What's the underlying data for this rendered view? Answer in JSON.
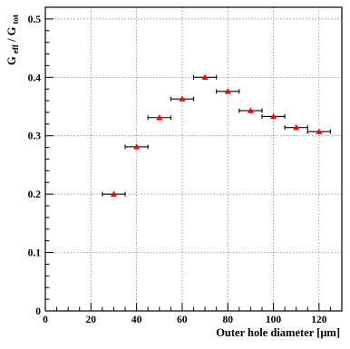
{
  "chart_data": {
    "type": "scatter",
    "title": "",
    "xlabel": "Outer hole diameter [μm]",
    "ylabel": {
      "prefix_main": "G",
      "prefix_sub": "eff",
      "slash": "/",
      "suffix_main": "G",
      "suffix_sub": "tot"
    },
    "xlim": [
      0,
      130
    ],
    "ylim": [
      0,
      0.52
    ],
    "grid": true,
    "x_ticks": [
      0,
      20,
      40,
      60,
      80,
      100,
      120
    ],
    "y_ticks": [
      0,
      0.1,
      0.2,
      0.3,
      0.4,
      0.5
    ],
    "x_tick_labels": [
      "0",
      "20",
      "40",
      "60",
      "80",
      "100",
      "120"
    ],
    "y_tick_labels": [
      "0",
      "0.1",
      "0.2",
      "0.3",
      "0.4",
      "0.5"
    ],
    "series": [
      {
        "marker": "triangle",
        "color": "#ff0000",
        "x": [
          30,
          40,
          50,
          60,
          70,
          80,
          90,
          100,
          110,
          120
        ],
        "y": [
          0.2,
          0.281,
          0.331,
          0.363,
          0.4,
          0.376,
          0.343,
          0.333,
          0.314,
          0.307
        ],
        "x_err": [
          5,
          5,
          5,
          5,
          5,
          5,
          5,
          5,
          5,
          5
        ]
      }
    ]
  }
}
